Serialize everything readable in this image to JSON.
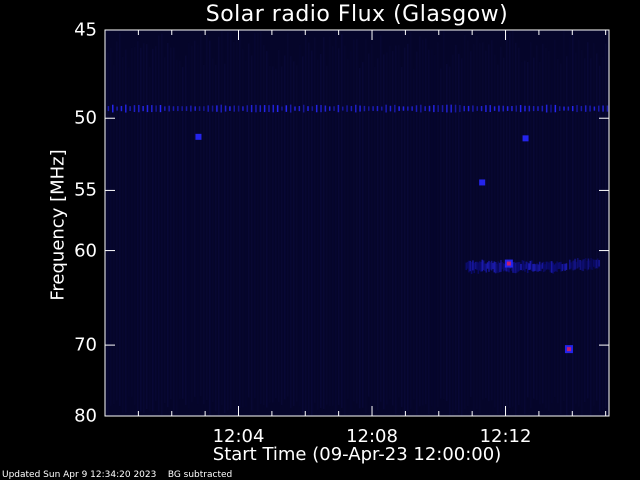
{
  "colors": {
    "background": "#000000",
    "plot_background": "#05052a",
    "axis": "#ffffff",
    "signal_low": "#1010a0",
    "signal_mid": "#2828ff",
    "signal_high": "#c02070"
  },
  "chart_data": {
    "type": "heatmap",
    "title": "Solar radio Flux (Glasgow)",
    "xlabel": "Start Time (09-Apr-23 12:00:00)",
    "ylabel": "Frequency [MHz]",
    "x_unit": "minutes after 12:00",
    "xlim": [
      0,
      15.1
    ],
    "ylim": [
      45,
      80
    ],
    "y_scale": "reciprocal",
    "y_ticks": [
      45,
      50,
      55,
      60,
      70,
      80
    ],
    "y_tick_labels": [
      "45",
      "50",
      "55",
      "60",
      "70",
      "80"
    ],
    "x_ticks": [
      4,
      8,
      12
    ],
    "x_tick_labels": [
      "12:04",
      "12:08",
      "12:12"
    ],
    "features": [
      {
        "kind": "persistent_line",
        "freq_mhz": 49.4,
        "t_start": 0.0,
        "t_end": 15.1,
        "intensity": 0.55
      },
      {
        "kind": "band",
        "freq_mhz": 61.5,
        "t_start": 10.8,
        "t_end": 13.8,
        "intensity": 0.6
      },
      {
        "kind": "band",
        "freq_mhz": 61.3,
        "t_start": 13.9,
        "t_end": 14.8,
        "intensity": 0.45
      },
      {
        "kind": "spot",
        "freq_mhz": 61.2,
        "t": 12.1,
        "intensity": 1.0
      },
      {
        "kind": "spot",
        "freq_mhz": 54.4,
        "t": 11.3,
        "intensity": 0.7
      },
      {
        "kind": "spot",
        "freq_mhz": 70.5,
        "t": 13.9,
        "intensity": 0.95
      },
      {
        "kind": "spot",
        "freq_mhz": 51.2,
        "t": 2.8,
        "intensity": 0.5
      },
      {
        "kind": "spot",
        "freq_mhz": 51.3,
        "t": 12.6,
        "intensity": 0.4
      }
    ]
  },
  "footer": {
    "updated": "Updated Sun Apr  9 12:34:20 2023",
    "note": "BG subtracted"
  }
}
